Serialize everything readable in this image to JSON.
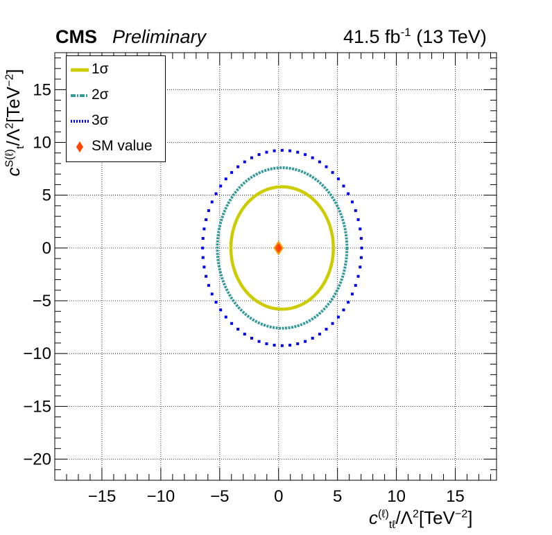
{
  "header": {
    "experiment": "CMS",
    "status": "Preliminary",
    "lumi": "41.5 fb",
    "lumi_exp": "-1",
    "energy": "(13 TeV)"
  },
  "legend": {
    "items": [
      {
        "label": "1σ",
        "color": "#cccc00",
        "style": "solid"
      },
      {
        "label": "2σ",
        "color": "#339999",
        "style": "dash-dot"
      },
      {
        "label": "3σ",
        "color": "#0000ee",
        "style": "dotted"
      },
      {
        "label": "SM value",
        "color": "#ff4400",
        "style": "marker"
      }
    ]
  },
  "axes": {
    "x_title_main": "c",
    "x_title_sup": "(ℓ)",
    "x_title_sub": "tℓ",
    "x_title_rest": "/Λ",
    "x_title_unit": "[TeV",
    "x_title_unit_exp": "−2",
    "x_title_close": "]",
    "y_title_main": "c",
    "y_title_sup": "S(ℓ)",
    "y_title_sub": "t",
    "y_title_rest": "/Λ",
    "y_title_unit": "[TeV",
    "y_title_unit_exp": "−2",
    "y_title_close": "]"
  },
  "chart_data": {
    "type": "scatter",
    "title": "",
    "xlim": [
      -19,
      18.5
    ],
    "ylim": [
      -22,
      18.5
    ],
    "x_ticks": [
      -15,
      -10,
      -5,
      0,
      5,
      10,
      15
    ],
    "y_ticks": [
      -20,
      -15,
      -10,
      -5,
      0,
      5,
      10,
      15
    ],
    "x_tick_labels": [
      "−15",
      "−10",
      "−5",
      "0",
      "5",
      "10",
      "15"
    ],
    "y_tick_labels": [
      "−20",
      "−15",
      "−10",
      "−5",
      "0",
      "5",
      "10",
      "15"
    ],
    "grid": true,
    "legend_position": "top-left",
    "series": [
      {
        "name": "1σ",
        "type": "contour",
        "center": [
          0.3,
          0.0
        ],
        "radius_x": 4.35,
        "radius_y": 5.8,
        "color": "#cccc00"
      },
      {
        "name": "2σ",
        "type": "contour",
        "center": [
          0.3,
          0.0
        ],
        "radius_x": 5.5,
        "radius_y": 7.6,
        "color": "#339999"
      },
      {
        "name": "3σ",
        "type": "contour",
        "center": [
          0.3,
          0.0
        ],
        "radius_x": 6.75,
        "radius_y": 9.25,
        "color": "#0000ee"
      },
      {
        "name": "SM value",
        "type": "marker",
        "x": 0,
        "y": 0,
        "color": "#ff4400"
      }
    ]
  }
}
